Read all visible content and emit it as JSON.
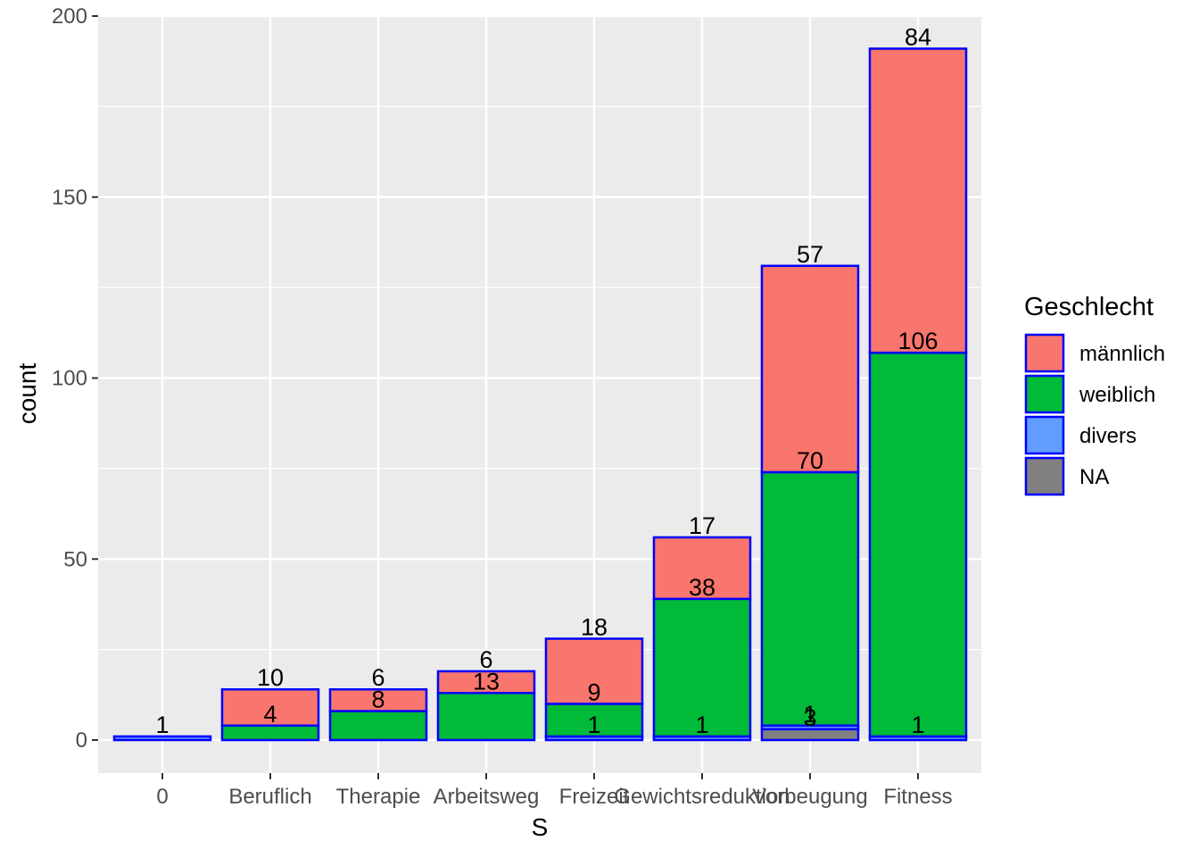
{
  "chart_data": {
    "type": "bar",
    "stacked": true,
    "xlabel": "S",
    "ylabel": "count",
    "ylim": [
      0,
      200
    ],
    "yticks": [
      0,
      50,
      100,
      150,
      200
    ],
    "grid": true,
    "legend_position": "right",
    "bar_outline_color": "#0000ff",
    "panel_background": "#ebebeb",
    "categories": [
      "0",
      "Beruflich",
      "Therapie",
      "Arbeitsweg",
      "Freizeit",
      "Gewichtsreduktion",
      "Vorbeugung",
      "Fitness"
    ],
    "legend_title": "Geschlecht",
    "series": [
      {
        "name": "männlich",
        "color": "#f8766d",
        "values": [
          0,
          10,
          6,
          6,
          18,
          17,
          57,
          84
        ]
      },
      {
        "name": "weiblich",
        "color": "#00ba38",
        "values": [
          0,
          4,
          8,
          13,
          9,
          38,
          70,
          106
        ]
      },
      {
        "name": "divers",
        "color": "#619cff",
        "values": [
          1,
          0,
          0,
          0,
          1,
          1,
          1,
          1
        ]
      },
      {
        "name": "NA",
        "color": "#808080",
        "values": [
          0,
          0,
          0,
          0,
          0,
          0,
          3,
          0
        ]
      }
    ]
  }
}
